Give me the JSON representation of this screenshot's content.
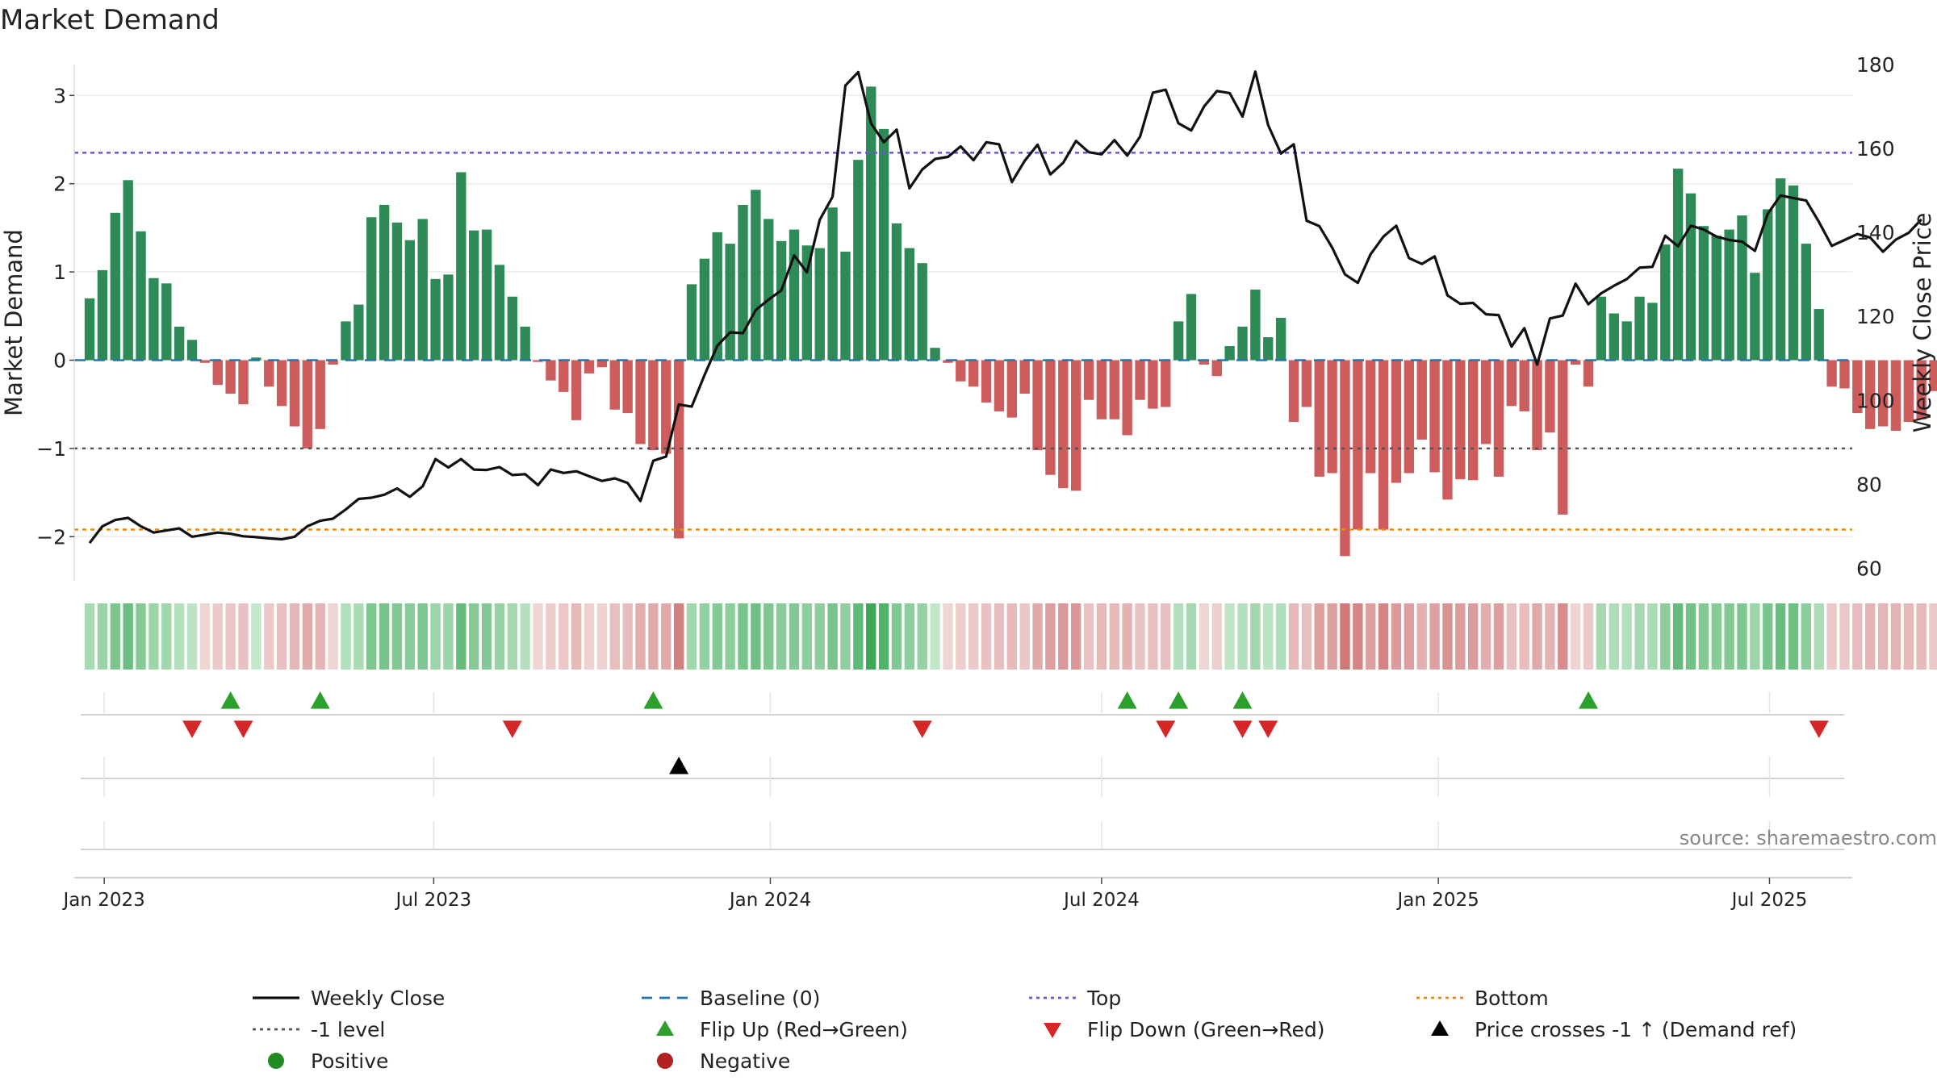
{
  "chart_data": {
    "type": "bar",
    "title": "Market Demand",
    "ylabel": "Market Demand",
    "y2label": "Weekly Close Price",
    "source": "source: sharemaestro.com",
    "ylim": [
      -2.5,
      3.35
    ],
    "y2lim": [
      57,
      180
    ],
    "yticks": [
      {
        "v": 3,
        "label": "3"
      },
      {
        "v": 2,
        "label": "2"
      },
      {
        "v": 1,
        "label": "1"
      },
      {
        "v": 0,
        "label": "0"
      },
      {
        "v": -1,
        "label": "−1"
      },
      {
        "v": -2,
        "label": "−2"
      }
    ],
    "y2ticks": [
      {
        "v": 180,
        "label": "180"
      },
      {
        "v": 160,
        "label": "160"
      },
      {
        "v": 140,
        "label": "140"
      },
      {
        "v": 120,
        "label": "120"
      },
      {
        "v": 100,
        "label": "100"
      },
      {
        "v": 80,
        "label": "80"
      },
      {
        "v": 60,
        "label": "60"
      }
    ],
    "x_range_weeks": [
      -1.2,
      137.6
    ],
    "x_ticks": [
      {
        "week": 1.14,
        "label": "Jan 2023"
      },
      {
        "week": 26.86,
        "label": "Jul 2023"
      },
      {
        "week": 53.14,
        "label": "Jan 2024"
      },
      {
        "week": 79.0,
        "label": "Jul 2024"
      },
      {
        "week": 105.29,
        "label": "Jan 2025"
      },
      {
        "week": 131.14,
        "label": "Jul 2025"
      }
    ],
    "levels": {
      "top": 2.35,
      "bottom": -1.92,
      "minus_one": -1,
      "baseline": 0
    },
    "colors": {
      "positive": "#2e8b57",
      "negative": "#cd5c5c",
      "close": "#111111",
      "top": "#6a5acd",
      "bottom": "#e08a1e",
      "minus_one": "#555555",
      "baseline": "#1f77b4",
      "flip_up": "#2ca02c",
      "flip_down": "#d62728",
      "cross": "#000000",
      "grid": "#ebebeb"
    },
    "demand": [
      0.7,
      1.02,
      1.67,
      2.04,
      1.46,
      0.93,
      0.87,
      0.38,
      0.23,
      -0.03,
      -0.28,
      -0.38,
      -0.5,
      0.03,
      -0.3,
      -0.52,
      -0.75,
      -1.0,
      -0.78,
      -0.05,
      0.44,
      0.63,
      1.62,
      1.76,
      1.56,
      1.36,
      1.6,
      0.92,
      0.97,
      2.13,
      1.47,
      1.48,
      1.08,
      0.72,
      0.38,
      -0.02,
      -0.23,
      -0.36,
      -0.68,
      -0.15,
      -0.08,
      -0.56,
      -0.6,
      -0.95,
      -1.02,
      -1.06,
      -2.02,
      0.86,
      1.15,
      1.45,
      1.32,
      1.76,
      1.93,
      1.6,
      1.35,
      1.48,
      1.3,
      1.27,
      1.73,
      1.23,
      2.27,
      3.1,
      2.62,
      1.55,
      1.27,
      1.1,
      0.14,
      -0.03,
      -0.24,
      -0.3,
      -0.48,
      -0.58,
      -0.65,
      -0.38,
      -1.02,
      -1.3,
      -1.45,
      -1.48,
      -0.45,
      -0.67,
      -0.67,
      -0.85,
      -0.45,
      -0.55,
      -0.53,
      0.44,
      0.75,
      -0.05,
      -0.18,
      0.16,
      0.38,
      0.8,
      0.26,
      0.48,
      -0.7,
      -0.53,
      -1.32,
      -1.28,
      -2.22,
      -1.92,
      -1.28,
      -1.92,
      -1.39,
      -1.28,
      -0.9,
      -1.27,
      -1.58,
      -1.35,
      -1.36,
      -0.95,
      -1.32,
      -0.52,
      -0.58,
      -1.02,
      -0.82,
      -1.75,
      -0.05,
      -0.3,
      0.72,
      0.53,
      0.44,
      0.72,
      0.65,
      1.31,
      2.17,
      1.89,
      1.52,
      1.41,
      1.48,
      1.64,
      0.99,
      1.71,
      2.06,
      1.98,
      1.32,
      0.58,
      -0.3,
      -0.32,
      -0.6,
      -0.78,
      -0.75,
      -0.8,
      -0.7,
      -0.67,
      -0.35
    ],
    "close": [
      66,
      70,
      71.5,
      72,
      70,
      68.5,
      69,
      69.5,
      67.5,
      68,
      68.5,
      68.2,
      67.6,
      67.4,
      67.1,
      66.9,
      67.5,
      70,
      71.3,
      71.8,
      74,
      76.5,
      76.8,
      77.5,
      79,
      77,
      79.5,
      86,
      84,
      86,
      83.5,
      83.4,
      84.1,
      82.2,
      82.4,
      79.8,
      83.5,
      82.7,
      83.1,
      81.9,
      80.8,
      81.4,
      80.3,
      76,
      85.6,
      86.6,
      99,
      98.5,
      106,
      113,
      116.2,
      116,
      121.5,
      124,
      126.2,
      134.5,
      130.5,
      143,
      148.5,
      175,
      178.2,
      166,
      161.5,
      164.5,
      150.5,
      155,
      157.5,
      158,
      160.5,
      157.2,
      161.5,
      161,
      152,
      157.1,
      160.9,
      153.8,
      156.6,
      161.8,
      159.1,
      158.6,
      162,
      158.3,
      162.8,
      173.3,
      174,
      166,
      164.3,
      170,
      173.7,
      173.2,
      167.6,
      178.3,
      165.6,
      158.8,
      161,
      142.8,
      141.5,
      136.4,
      130,
      128,
      134.8,
      139,
      141.6,
      133.9,
      132.5,
      134.3,
      125,
      123,
      123.2,
      120.5,
      120.3,
      112.8,
      117.2,
      108.5,
      119.5,
      120.2,
      127.8,
      122.9,
      125.5,
      127.3,
      128.9,
      131.6,
      131.8,
      139.2,
      136.7,
      141.6,
      140.7,
      139,
      138.2,
      137.8,
      135.6,
      144.4,
      148.8,
      148.2,
      147.6,
      142.5,
      136.8,
      138.2,
      139.6,
      138.8,
      135.4,
      138.3,
      139.9,
      143.1
    ],
    "flip_up_weeks": [
      11,
      18,
      44,
      81,
      85,
      90,
      117
    ],
    "flip_down_weeks": [
      8,
      12,
      33,
      65,
      84,
      90,
      92,
      135
    ],
    "price_cross_weeks": [
      46
    ],
    "legend": [
      {
        "key": "close",
        "label": "Weekly Close",
        "style": "line"
      },
      {
        "key": "baseline",
        "label": "Baseline (0)",
        "style": "dash"
      },
      {
        "key": "top",
        "label": "Top",
        "style": "dot"
      },
      {
        "key": "bottom",
        "label": "Bottom",
        "style": "dot"
      },
      {
        "key": "minus_one",
        "label": "-1 level",
        "style": "dot"
      },
      {
        "key": "flip_up",
        "label": "Flip Up (Red→Green)",
        "style": "tri-up"
      },
      {
        "key": "flip_down",
        "label": "Flip Down (Green→Red)",
        "style": "tri-down"
      },
      {
        "key": "cross",
        "label": "Price crosses -1 ↑ (Demand ref)",
        "style": "tri-up"
      },
      {
        "key": "positive",
        "label": "Positive",
        "style": "circle"
      },
      {
        "key": "negative",
        "label": "Negative",
        "style": "circle"
      }
    ]
  }
}
